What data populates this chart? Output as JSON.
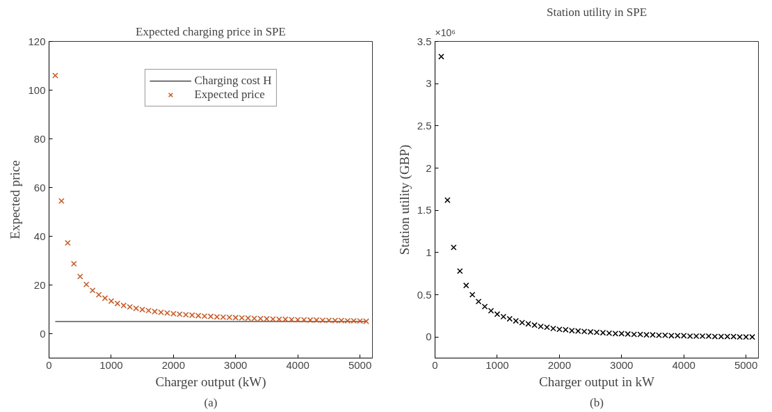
{
  "chart_data": [
    {
      "type": "scatter",
      "title": "Expected charging price in SPE",
      "xlabel": "Charger output (kW)",
      "ylabel": "Expected price",
      "x": [
        100,
        200,
        300,
        400,
        500,
        600,
        700,
        800,
        900,
        1000,
        1100,
        1200,
        1300,
        1400,
        1500,
        1600,
        1700,
        1800,
        1900,
        2000,
        2100,
        2200,
        2300,
        2400,
        2500,
        2600,
        2700,
        2800,
        2900,
        3000,
        3100,
        3200,
        3300,
        3400,
        3500,
        3600,
        3700,
        3800,
        3900,
        4000,
        4100,
        4200,
        4300,
        4400,
        4500,
        4600,
        4700,
        4800,
        4900,
        5000,
        5100
      ],
      "series": [
        {
          "name": "Charging cost H",
          "type": "line",
          "marker": "none",
          "color": "#000000",
          "x": [
            100,
            5100
          ],
          "values": [
            5,
            5
          ]
        },
        {
          "name": "Expected price",
          "color": "#d95319",
          "values": [
            106,
            54.5,
            37.3,
            28.7,
            23.5,
            20.2,
            17.8,
            16,
            14.6,
            13.4,
            12.4,
            11.6,
            11.0,
            10.4,
            9.9,
            9.5,
            9.1,
            8.8,
            8.5,
            8.2,
            8.0,
            7.8,
            7.6,
            7.4,
            7.2,
            7.1,
            6.9,
            6.8,
            6.7,
            6.6,
            6.5,
            6.4,
            6.3,
            6.2,
            6.1,
            6.0,
            5.9,
            5.9,
            5.8,
            5.7,
            5.7,
            5.6,
            5.6,
            5.5,
            5.5,
            5.4,
            5.4,
            5.3,
            5.3,
            5.2,
            5.1
          ]
        }
      ],
      "marker": "cross",
      "legend": "top",
      "grid": false,
      "xlim": [
        0,
        5200
      ],
      "xticks": [
        0,
        1000,
        2000,
        3000,
        4000,
        5000
      ],
      "ylim": [
        -10,
        120
      ],
      "yticks": [
        0,
        20,
        40,
        60,
        80,
        100,
        120
      ],
      "annotations": [
        "(a)"
      ]
    },
    {
      "type": "scatter",
      "title": "Station utility in SPE",
      "xlabel": "Charger output in kW",
      "ylabel": "Station utility (GBP)",
      "x": [
        100,
        200,
        300,
        400,
        500,
        600,
        700,
        800,
        900,
        1000,
        1100,
        1200,
        1300,
        1400,
        1500,
        1600,
        1700,
        1800,
        1900,
        2000,
        2100,
        2200,
        2300,
        2400,
        2500,
        2600,
        2700,
        2800,
        2900,
        3000,
        3100,
        3200,
        3300,
        3400,
        3500,
        3600,
        3700,
        3800,
        3900,
        4000,
        4100,
        4200,
        4300,
        4400,
        4500,
        4600,
        4700,
        4800,
        4900,
        5000,
        5100
      ],
      "series": [
        {
          "color": "#000000",
          "values": [
            3.32,
            1.62,
            1.06,
            0.78,
            0.61,
            0.5,
            0.42,
            0.36,
            0.31,
            0.27,
            0.24,
            0.215,
            0.19,
            0.17,
            0.155,
            0.14,
            0.125,
            0.115,
            0.1,
            0.09,
            0.085,
            0.075,
            0.07,
            0.065,
            0.06,
            0.055,
            0.05,
            0.045,
            0.04,
            0.04,
            0.035,
            0.03,
            0.03,
            0.025,
            0.025,
            0.02,
            0.02,
            0.015,
            0.015,
            0.015,
            0.01,
            0.01,
            0.01,
            0.01,
            0.005,
            0.005,
            0.005,
            0.005,
            0,
            0,
            0
          ]
        }
      ],
      "marker": "cross",
      "grid": false,
      "xlim": [
        0,
        5200
      ],
      "xticks": [
        0,
        1000,
        2000,
        3000,
        4000,
        5000
      ],
      "ylim": [
        -0.25,
        3.5
      ],
      "yticks": [
        0,
        0.5,
        1,
        1.5,
        2,
        2.5,
        3,
        3.5
      ],
      "annotations": [
        "×10⁶",
        "(b)"
      ]
    }
  ]
}
